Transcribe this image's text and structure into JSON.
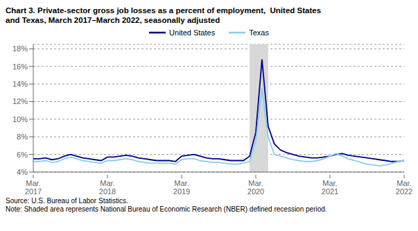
{
  "chart_data": {
    "type": "line",
    "title": "Chart 3. Private-sector gross job losses as a percent of employment,  United States\nand Texas, March 2017–March 2022, seasonally adjusted",
    "annotations": [
      "Source: U.S. Bureau of Labor Statistics.\nNote: Shaded area represents National Bureau of Economic Research (NBER) defined recession period."
    ],
    "categories": [
      "Mar.\n2017",
      null,
      null,
      null,
      null,
      null,
      null,
      null,
      null,
      null,
      null,
      null,
      "Mar.\n2018",
      null,
      null,
      null,
      null,
      null,
      null,
      null,
      null,
      null,
      null,
      null,
      "Mar.\n2019",
      null,
      null,
      null,
      null,
      null,
      null,
      null,
      null,
      null,
      null,
      null,
      "Mar.\n2020",
      null,
      null,
      null,
      null,
      null,
      null,
      null,
      null,
      null,
      null,
      null,
      "Mar.\n2021",
      null,
      null,
      null,
      null,
      null,
      null,
      null,
      null,
      null,
      null,
      null,
      "Mar.\n2022"
    ],
    "series": [
      {
        "name": "United States",
        "color": "#00008B",
        "values": [
          5.5,
          5.5,
          5.6,
          5.4,
          5.5,
          5.8,
          6.0,
          5.8,
          5.6,
          5.5,
          5.4,
          5.3,
          5.7,
          5.7,
          5.8,
          5.9,
          5.8,
          5.6,
          5.5,
          5.4,
          5.3,
          5.3,
          5.3,
          5.2,
          5.8,
          5.9,
          6.0,
          5.8,
          5.6,
          5.5,
          5.5,
          5.4,
          5.3,
          5.3,
          5.3,
          5.8,
          8.5,
          16.8,
          9.2,
          7.2,
          6.5,
          6.2,
          6.0,
          5.8,
          5.7,
          5.6,
          5.6,
          5.7,
          5.8,
          6.0,
          6.1,
          5.9,
          5.8,
          5.7,
          5.6,
          5.5,
          5.4,
          5.3,
          5.2,
          5.2,
          5.3
        ]
      },
      {
        "name": "Texas",
        "color": "#87CEEB",
        "values": [
          5.2,
          5.2,
          5.3,
          5.1,
          5.2,
          5.5,
          5.7,
          5.5,
          5.3,
          5.2,
          5.1,
          5.0,
          5.3,
          5.3,
          5.4,
          5.5,
          5.4,
          5.2,
          5.1,
          5.0,
          5.0,
          5.0,
          5.0,
          4.9,
          5.4,
          5.5,
          5.5,
          5.3,
          5.2,
          5.1,
          5.1,
          5.0,
          4.9,
          4.9,
          5.0,
          5.2,
          7.5,
          13.5,
          8.0,
          6.0,
          5.8,
          5.6,
          5.4,
          5.3,
          5.2,
          5.2,
          5.3,
          5.5,
          5.8,
          6.1,
          5.8,
          5.5,
          5.3,
          5.1,
          4.9,
          4.8,
          4.7,
          4.8,
          5.0,
          5.2,
          5.3
        ]
      }
    ],
    "recession": {
      "start": 35,
      "end": 38,
      "color": "#D8D8D8"
    },
    "ylim": [
      4.0,
      18.5
    ],
    "yticks": [
      {
        "value": 4,
        "label": "4%"
      },
      {
        "value": 6,
        "label": "6%"
      },
      {
        "value": 8,
        "label": "8%"
      },
      {
        "value": 10,
        "label": "10%"
      },
      {
        "value": 12,
        "label": "12%"
      },
      {
        "value": 14,
        "label": "14%"
      },
      {
        "value": 16,
        "label": "16%"
      },
      {
        "value": 18,
        "label": "18%"
      }
    ],
    "grid": true,
    "legend": "top"
  }
}
